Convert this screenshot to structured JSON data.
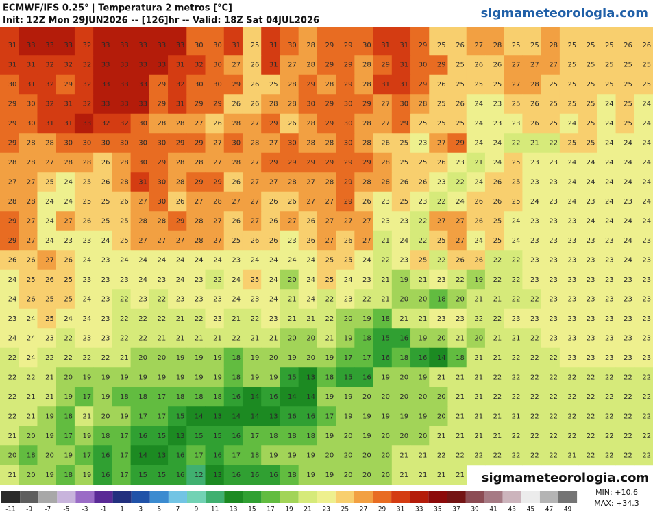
{
  "header": {
    "title": "ECMWF/IFS 0.25° | Temperatura 2 metros [°C]",
    "subtitle": "Init: 12Z Mon 29JUN2026 -- [126]hr -- Valid: 18Z Sat 04JUL2026",
    "site": "sigmameteorologia.com"
  },
  "watermark": "sigmameteorologia.com",
  "grid": {
    "rows": [
      [
        31,
        33,
        33,
        33,
        32,
        33,
        33,
        33,
        33,
        33,
        30,
        30,
        31,
        25,
        31,
        30,
        28,
        29,
        29,
        30,
        31,
        31,
        29,
        25,
        26,
        27,
        28,
        25,
        25,
        28,
        25,
        25,
        25,
        26,
        26
      ],
      [
        31,
        31,
        32,
        32,
        32,
        33,
        33,
        33,
        33,
        31,
        32,
        30,
        27,
        26,
        31,
        27,
        28,
        29,
        29,
        28,
        29,
        31,
        30,
        29,
        25,
        26,
        26,
        27,
        27,
        27,
        25,
        25,
        25,
        25,
        25
      ],
      [
        30,
        31,
        32,
        29,
        32,
        33,
        33,
        33,
        29,
        32,
        30,
        30,
        29,
        26,
        25,
        28,
        29,
        28,
        29,
        28,
        31,
        31,
        29,
        26,
        25,
        25,
        25,
        27,
        28,
        25,
        25,
        25,
        25,
        25,
        25
      ],
      [
        29,
        30,
        32,
        31,
        32,
        33,
        33,
        33,
        29,
        31,
        29,
        29,
        26,
        26,
        28,
        28,
        30,
        29,
        30,
        29,
        27,
        30,
        28,
        25,
        26,
        24,
        23,
        25,
        26,
        25,
        25,
        25,
        24,
        25,
        24
      ],
      [
        29,
        30,
        31,
        31,
        33,
        32,
        32,
        30,
        28,
        28,
        27,
        26,
        28,
        27,
        29,
        26,
        28,
        29,
        30,
        28,
        27,
        29,
        25,
        25,
        25,
        24,
        23,
        23,
        26,
        25,
        24,
        25,
        24,
        25,
        24
      ],
      [
        29,
        28,
        28,
        30,
        30,
        30,
        30,
        30,
        30,
        29,
        29,
        27,
        30,
        28,
        27,
        30,
        28,
        28,
        30,
        28,
        26,
        25,
        23,
        27,
        29,
        24,
        24,
        22,
        21,
        22,
        25,
        25,
        24,
        24,
        24
      ],
      [
        28,
        28,
        27,
        28,
        28,
        26,
        28,
        30,
        29,
        28,
        28,
        27,
        28,
        27,
        29,
        29,
        29,
        29,
        29,
        29,
        28,
        25,
        25,
        26,
        23,
        21,
        24,
        25,
        23,
        23,
        24,
        24,
        24,
        24,
        24
      ],
      [
        27,
        27,
        25,
        24,
        25,
        26,
        28,
        31,
        30,
        28,
        29,
        29,
        26,
        27,
        27,
        28,
        27,
        28,
        29,
        28,
        28,
        26,
        26,
        23,
        22,
        24,
        26,
        25,
        23,
        23,
        24,
        24,
        24,
        24,
        24
      ],
      [
        28,
        28,
        24,
        24,
        25,
        25,
        26,
        27,
        30,
        26,
        27,
        28,
        27,
        27,
        26,
        26,
        27,
        27,
        29,
        26,
        23,
        25,
        23,
        22,
        24,
        26,
        26,
        25,
        24,
        23,
        24,
        23,
        24,
        23,
        24
      ],
      [
        29,
        27,
        24,
        27,
        26,
        25,
        25,
        28,
        28,
        29,
        28,
        27,
        26,
        27,
        26,
        27,
        26,
        27,
        27,
        27,
        23,
        23,
        22,
        27,
        27,
        26,
        25,
        24,
        23,
        23,
        23,
        24,
        24,
        24,
        24
      ],
      [
        29,
        27,
        24,
        23,
        23,
        24,
        25,
        27,
        27,
        27,
        28,
        27,
        25,
        26,
        26,
        23,
        26,
        27,
        26,
        27,
        21,
        24,
        22,
        25,
        27,
        24,
        25,
        24,
        23,
        23,
        23,
        23,
        23,
        24,
        23
      ],
      [
        26,
        26,
        27,
        26,
        24,
        23,
        24,
        24,
        24,
        24,
        24,
        24,
        23,
        24,
        24,
        24,
        24,
        25,
        25,
        24,
        22,
        23,
        25,
        22,
        26,
        26,
        22,
        22,
        23,
        23,
        23,
        23,
        23,
        24,
        23
      ],
      [
        24,
        25,
        26,
        25,
        23,
        23,
        23,
        24,
        23,
        24,
        23,
        22,
        24,
        25,
        24,
        20,
        24,
        25,
        24,
        23,
        21,
        19,
        21,
        23,
        22,
        19,
        22,
        22,
        23,
        23,
        23,
        23,
        23,
        23,
        23
      ],
      [
        24,
        26,
        25,
        25,
        24,
        23,
        22,
        23,
        22,
        23,
        23,
        23,
        24,
        23,
        24,
        21,
        24,
        22,
        23,
        22,
        21,
        20,
        20,
        18,
        20,
        21,
        21,
        22,
        22,
        23,
        23,
        23,
        23,
        23,
        23
      ],
      [
        23,
        24,
        25,
        24,
        24,
        23,
        22,
        22,
        22,
        21,
        22,
        23,
        21,
        22,
        23,
        21,
        21,
        22,
        20,
        19,
        18,
        21,
        21,
        23,
        23,
        22,
        22,
        23,
        23,
        23,
        23,
        23,
        23,
        23,
        23
      ],
      [
        24,
        24,
        23,
        22,
        23,
        23,
        22,
        22,
        21,
        21,
        21,
        21,
        22,
        21,
        21,
        20,
        20,
        21,
        19,
        18,
        15,
        16,
        19,
        20,
        21,
        20,
        21,
        21,
        22,
        23,
        23,
        23,
        23,
        23,
        23
      ],
      [
        22,
        24,
        22,
        22,
        22,
        22,
        21,
        20,
        20,
        19,
        19,
        19,
        18,
        19,
        20,
        19,
        20,
        19,
        17,
        17,
        16,
        18,
        16,
        14,
        18,
        21,
        21,
        22,
        22,
        22,
        23,
        23,
        23,
        23,
        23
      ],
      [
        22,
        22,
        21,
        20,
        19,
        19,
        19,
        19,
        19,
        19,
        19,
        19,
        18,
        19,
        19,
        15,
        13,
        18,
        15,
        16,
        19,
        20,
        19,
        21,
        21,
        21,
        22,
        22,
        22,
        22,
        22,
        22,
        22,
        22,
        22
      ],
      [
        22,
        21,
        21,
        19,
        17,
        19,
        18,
        18,
        17,
        18,
        18,
        18,
        16,
        14,
        16,
        14,
        14,
        19,
        19,
        20,
        20,
        20,
        20,
        20,
        21,
        21,
        22,
        22,
        22,
        22,
        22,
        22,
        22,
        22,
        22
      ],
      [
        22,
        21,
        19,
        18,
        21,
        20,
        19,
        17,
        17,
        15,
        14,
        13,
        14,
        14,
        13,
        16,
        16,
        17,
        19,
        19,
        19,
        19,
        19,
        20,
        21,
        21,
        21,
        21,
        22,
        22,
        22,
        22,
        22,
        22,
        22
      ],
      [
        21,
        20,
        19,
        17,
        19,
        18,
        17,
        16,
        15,
        13,
        15,
        15,
        16,
        17,
        18,
        18,
        18,
        19,
        20,
        19,
        20,
        20,
        20,
        21,
        21,
        21,
        21,
        22,
        22,
        22,
        22,
        22,
        22,
        22,
        22
      ],
      [
        20,
        18,
        20,
        19,
        17,
        16,
        17,
        14,
        13,
        16,
        17,
        16,
        17,
        18,
        19,
        19,
        19,
        20,
        20,
        20,
        20,
        21,
        21,
        22,
        22,
        22,
        22,
        22,
        22,
        22,
        21,
        22,
        22,
        22,
        22
      ],
      [
        21,
        20,
        19,
        18,
        19,
        16,
        17,
        15,
        15,
        16,
        12,
        13,
        16,
        16,
        16,
        18,
        19,
        19,
        20,
        20,
        20,
        21,
        21,
        21,
        21
      ]
    ]
  },
  "colorbar": {
    "labels": [
      -11,
      -9,
      -7,
      -5,
      -3,
      -1,
      1,
      3,
      5,
      7,
      9,
      11,
      13,
      15,
      17,
      19,
      21,
      23,
      25,
      27,
      29,
      31,
      33,
      35,
      37,
      39,
      41,
      43,
      45,
      47,
      49
    ],
    "colors": [
      "#2b2b2b",
      "#5e5e5e",
      "#a8a8a8",
      "#c8b4dc",
      "#9a6cc6",
      "#5a2a96",
      "#22307e",
      "#2052a8",
      "#3b8bd0",
      "#72c4e4",
      "#72d2b4",
      "#40b070",
      "#1c8a22",
      "#30a032",
      "#62bc40",
      "#a2d458",
      "#d6ea7a",
      "#eef08e",
      "#f8cf6e",
      "#f2a042",
      "#e86c22",
      "#d43c12",
      "#b41c0a",
      "#8c0a0a",
      "#741414",
      "#8c4c54",
      "#a67a84",
      "#ccb4bc",
      "#ececec",
      "#b4b4b4",
      "#747474"
    ]
  },
  "min_label": "MIN: +10.6",
  "max_label": "MAX: +34.3"
}
